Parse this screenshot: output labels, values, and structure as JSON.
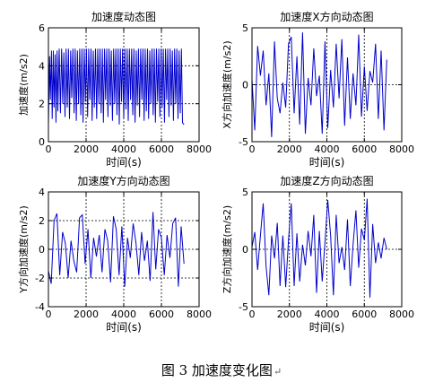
{
  "caption": "图 3  加速度变化图",
  "caption_mark": "↵",
  "chart_data": [
    {
      "type": "line",
      "title": "加速度动态图",
      "xlabel": "时间(s)",
      "ylabel": "加速度(m/s2)",
      "xlim": [
        0,
        8000
      ],
      "ylim": [
        0,
        6
      ],
      "xticks": [
        0,
        2000,
        4000,
        6000,
        8000
      ],
      "yticks": [
        0,
        2,
        4,
        6
      ],
      "grid": "dashed",
      "line_color": "#0000cc",
      "series": [
        {
          "x": [
            0,
            60,
            100,
            160,
            200,
            260,
            300,
            360,
            400,
            460,
            500,
            570,
            640,
            700,
            760,
            820,
            880,
            940,
            1000,
            1060,
            1120,
            1180,
            1240,
            1300,
            1360,
            1420,
            1480,
            1540,
            1600,
            1660,
            1720,
            1780,
            1840,
            1900,
            1960,
            2020,
            2080,
            2140,
            2200,
            2260,
            2320,
            2380,
            2440,
            2500,
            2560,
            2620,
            2680,
            2740,
            2800,
            2860,
            2920,
            2980,
            3040,
            3100,
            3160,
            3220,
            3280,
            3340,
            3400,
            3460,
            3520,
            3580,
            3640,
            3700,
            3760,
            3820,
            3880,
            3940,
            4000,
            4060,
            4120,
            4180,
            4240,
            4300,
            4360,
            4420,
            4480,
            4540,
            4600,
            4660,
            4720,
            4780,
            4840,
            4900,
            4960,
            5020,
            5080,
            5140,
            5200,
            5260,
            5320,
            5380,
            5440,
            5500,
            5560,
            5620,
            5680,
            5740,
            5800,
            5860,
            5920,
            5980,
            6040,
            6100,
            6160,
            6220,
            6280,
            6340,
            6400,
            6460,
            6520,
            6580,
            6640,
            6700,
            6760,
            6820,
            6880,
            6940,
            7000,
            7060,
            7120,
            7200
          ],
          "y": [
            0.9,
            4.5,
            2.2,
            4.8,
            1.2,
            4.8,
            1.8,
            4.6,
            1.0,
            4.8,
            1.6,
            4.9,
            1.5,
            4.9,
            2.0,
            4.7,
            1.3,
            4.9,
            1.8,
            4.9,
            1.2,
            4.8,
            2.3,
            4.9,
            1.5,
            4.9,
            1.1,
            4.8,
            2.0,
            4.9,
            1.4,
            4.9,
            1.0,
            4.9,
            2.1,
            4.9,
            1.3,
            4.9,
            2.2,
            4.9,
            1.1,
            4.8,
            1.8,
            4.9,
            1.2,
            4.9,
            2.0,
            4.9,
            1.5,
            4.9,
            1.0,
            4.9,
            2.2,
            4.9,
            1.3,
            4.9,
            1.9,
            4.8,
            1.1,
            4.9,
            2.0,
            4.9,
            1.4,
            4.9,
            0.9,
            4.9,
            2.1,
            4.9,
            1.2,
            4.9,
            1.7,
            4.9,
            1.1,
            4.9,
            2.2,
            4.9,
            1.4,
            4.9,
            1.0,
            4.8,
            1.9,
            4.9,
            1.3,
            4.9,
            2.2,
            4.9,
            1.1,
            4.9,
            1.6,
            4.9,
            1.2,
            4.8,
            2.0,
            4.9,
            1.4,
            4.9,
            1.0,
            4.9,
            2.1,
            4.9,
            1.3,
            4.9,
            1.8,
            4.9,
            1.0,
            4.9,
            2.2,
            4.9,
            1.3,
            4.9,
            1.9,
            4.8,
            1.1,
            4.9,
            2.0,
            4.9,
            1.2,
            4.8,
            1.5,
            4.9,
            1.0,
            0.9
          ]
        }
      ]
    },
    {
      "type": "line",
      "title": "加速度X方向动态图",
      "xlabel": "时间(s)",
      "ylabel": "X方向加速度(m/s2)",
      "xlim": [
        0,
        8000
      ],
      "ylim": [
        -5,
        5
      ],
      "xticks": [
        0,
        2000,
        4000,
        6000,
        8000
      ],
      "yticks": [
        -5,
        0,
        5
      ],
      "grid": "dashed",
      "line_color": "#0000cc",
      "series": [
        {
          "x": [
            0,
            150,
            300,
            450,
            600,
            750,
            900,
            1050,
            1200,
            1350,
            1500,
            1650,
            1800,
            1950,
            2100,
            2250,
            2400,
            2550,
            2700,
            2850,
            3000,
            3150,
            3300,
            3450,
            3600,
            3750,
            3900,
            4050,
            4200,
            4350,
            4500,
            4650,
            4800,
            4950,
            5100,
            5250,
            5400,
            5550,
            5700,
            5850,
            6000,
            6150,
            6300,
            6450,
            6600,
            6750,
            6900,
            7050,
            7200
          ],
          "y": [
            0.5,
            -4.0,
            3.4,
            0.8,
            3.0,
            -1.8,
            1.0,
            -4.6,
            3.8,
            -1.2,
            -2.5,
            0.2,
            -2.0,
            3.6,
            4.2,
            -2.5,
            2.5,
            -3.5,
            4.6,
            -4.3,
            0.6,
            -1.8,
            3.2,
            -1.0,
            0.8,
            -4.3,
            3.8,
            -3.8,
            1.3,
            -2.0,
            3.6,
            -1.2,
            4.0,
            -3.6,
            2.4,
            -3.0,
            1.0,
            -1.8,
            4.4,
            -2.8,
            1.6,
            -2.3,
            1.2,
            0.2,
            3.6,
            -3.0,
            3.0,
            -4.0,
            2.2
          ]
        }
      ]
    },
    {
      "type": "line",
      "title": "加速度Y方向动态图",
      "xlabel": "时间(s)",
      "ylabel": "Y方向加速度(m/s2)",
      "xlim": [
        0,
        8000
      ],
      "ylim": [
        -4,
        4
      ],
      "xticks": [
        0,
        2000,
        4000,
        6000,
        8000
      ],
      "yticks": [
        -4,
        -2,
        0,
        2,
        4
      ],
      "grid": "dashed",
      "line_color": "#0000cc",
      "series": [
        {
          "x": [
            0,
            150,
            300,
            450,
            600,
            750,
            900,
            1050,
            1200,
            1350,
            1500,
            1650,
            1800,
            1950,
            2100,
            2250,
            2400,
            2550,
            2700,
            2850,
            3000,
            3150,
            3300,
            3450,
            3600,
            3750,
            3900,
            4050,
            4200,
            4350,
            4500,
            4650,
            4800,
            4950,
            5100,
            5250,
            5400,
            5550,
            5700,
            5850,
            6000,
            6150,
            6300,
            6450,
            6600,
            6750,
            6900,
            7050,
            7200
          ],
          "y": [
            -1.5,
            -2.4,
            2.0,
            2.5,
            -1.8,
            1.2,
            0.4,
            -2.0,
            0.6,
            -0.8,
            -1.6,
            2.2,
            2.4,
            -1.0,
            1.4,
            -2.0,
            0.8,
            -0.5,
            1.0,
            -1.6,
            1.4,
            0.6,
            -2.3,
            2.3,
            1.4,
            -1.8,
            1.6,
            -2.6,
            0.8,
            -0.6,
            1.8,
            0.4,
            -1.8,
            1.2,
            -0.8,
            0.6,
            -2.2,
            2.6,
            -1.4,
            1.4,
            0.8,
            -1.8,
            1.0,
            -0.6,
            1.8,
            2.2,
            -2.6,
            1.6,
            -1.0
          ]
        }
      ]
    },
    {
      "type": "line",
      "title": "加速度Z方向动态图",
      "xlabel": "时间(s)",
      "ylabel": "Z方向加速度(m/s2)",
      "xlim": [
        0,
        8000
      ],
      "ylim": [
        -5,
        5
      ],
      "xticks": [
        0,
        2000,
        4000,
        6000,
        8000
      ],
      "yticks": [
        -5,
        0,
        5
      ],
      "grid": "dashed",
      "line_color": "#0000cc",
      "series": [
        {
          "x": [
            0,
            150,
            300,
            450,
            600,
            750,
            900,
            1050,
            1200,
            1350,
            1500,
            1650,
            1800,
            1950,
            2100,
            2250,
            2400,
            2550,
            2700,
            2850,
            3000,
            3150,
            3300,
            3450,
            3600,
            3750,
            3900,
            4050,
            4200,
            4350,
            4500,
            4650,
            4800,
            4950,
            5100,
            5250,
            5400,
            5550,
            5700,
            5850,
            6000,
            6150,
            6300,
            6450,
            6600,
            6750,
            6900,
            7050,
            7200
          ],
          "y": [
            0.2,
            1.5,
            -1.8,
            1.2,
            4.0,
            -1.5,
            -4.0,
            1.2,
            -0.8,
            2.3,
            -3.2,
            1.2,
            -3.3,
            0.8,
            4.0,
            -3.2,
            1.4,
            -2.8,
            0.4,
            -1.4,
            1.6,
            -0.6,
            3.0,
            -3.8,
            1.6,
            -2.8,
            0.6,
            4.3,
            1.2,
            -4.0,
            3.0,
            -1.2,
            0.2,
            -1.8,
            2.6,
            -3.2,
            0.4,
            3.4,
            -1.6,
            1.8,
            0.8,
            4.4,
            -4.2,
            2.2,
            -1.2,
            0.6,
            -0.8,
            1.0,
            0.0
          ]
        }
      ]
    }
  ]
}
